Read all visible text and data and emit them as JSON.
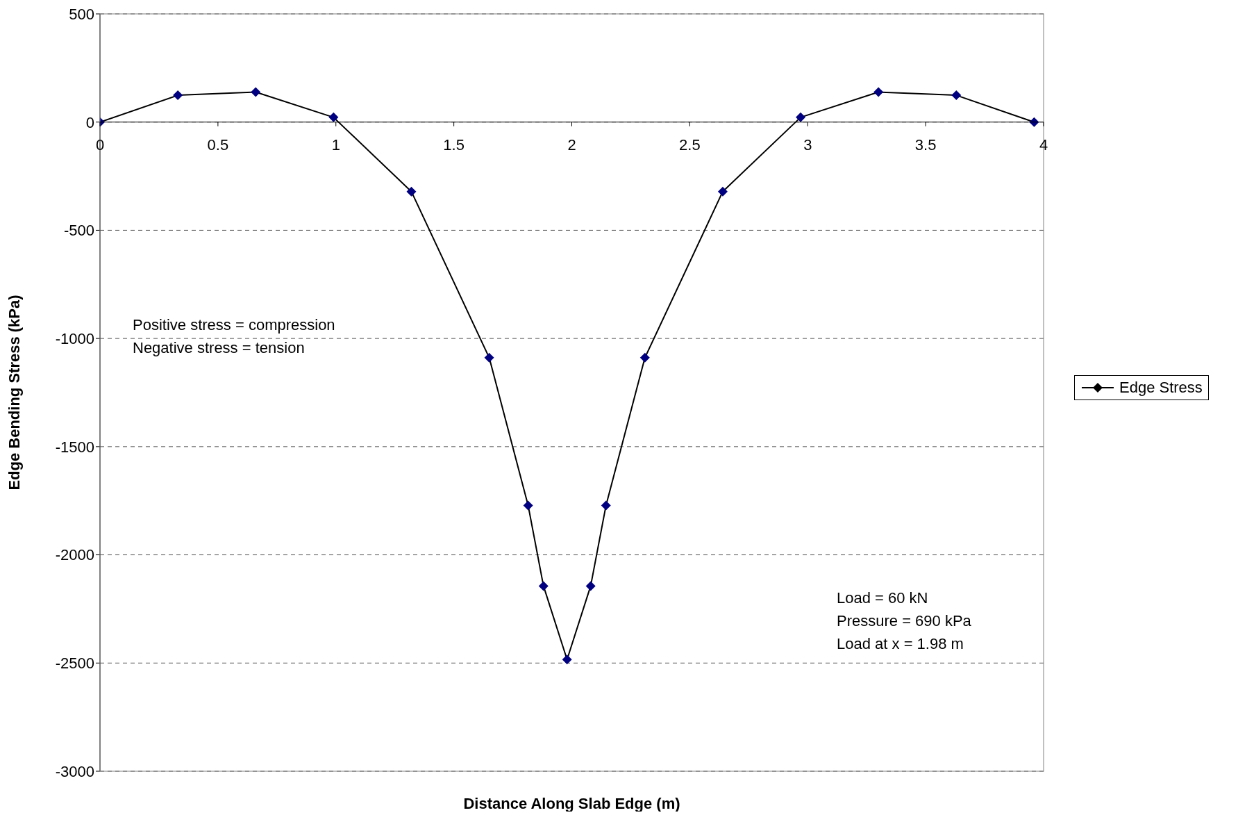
{
  "chart_data": {
    "type": "line",
    "xlabel": "Distance Along Slab Edge (m)",
    "ylabel": "Edge Bending Stress (kPa)",
    "x": [
      0,
      0.33,
      0.66,
      0.99,
      1.32,
      1.65,
      1.815,
      1.88,
      1.98,
      2.08,
      2.145,
      2.31,
      2.64,
      2.97,
      3.3,
      3.63,
      3.96
    ],
    "series": [
      {
        "name": "Edge Stress",
        "color": "#000080",
        "values": [
          0,
          124,
          139,
          22,
          -321,
          -1089,
          -1772,
          -2144,
          -2484,
          -2144,
          -1772,
          -1089,
          -321,
          22,
          139,
          124,
          0
        ]
      }
    ],
    "xlim": [
      0,
      4
    ],
    "xticks": [
      0,
      0.5,
      1,
      1.5,
      2,
      2.5,
      3,
      3.5,
      4
    ],
    "ylim": [
      -3000,
      500
    ],
    "yticks": [
      -3000,
      -2500,
      -2000,
      -1500,
      -1000,
      -500,
      0,
      500
    ],
    "grid": "y",
    "legend": "right",
    "marker": "diamond",
    "line_style": "solid",
    "annotations": [
      "Positive stress = compression",
      "Negative stress = tension",
      "Load = 60 kN",
      "Pressure = 690 kPa",
      "Load at x = 1.98 m"
    ]
  }
}
